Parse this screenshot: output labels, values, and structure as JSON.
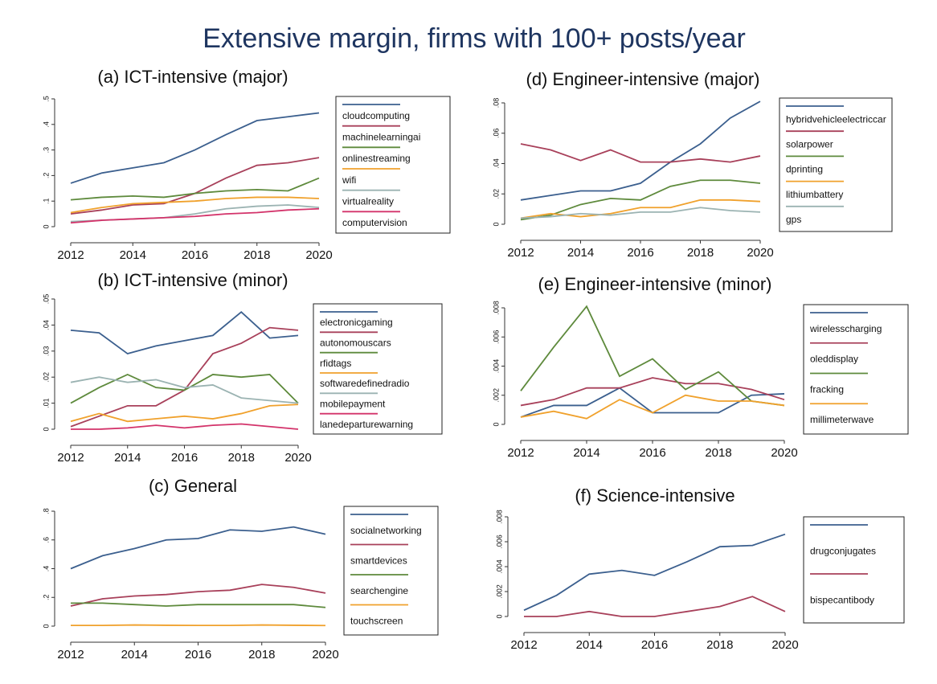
{
  "title": "Extensive margin, firms with 100+ posts/year",
  "chart_data": [
    {
      "type": "line",
      "title": "(a) ICT-intensive (major)",
      "x": [
        2012,
        2013,
        2014,
        2015,
        2016,
        2017,
        2018,
        2019,
        2020
      ],
      "xlim": [
        2012,
        2020
      ],
      "xticks": [
        2012,
        2014,
        2016,
        2018,
        2020
      ],
      "ylim": [
        0,
        0.5
      ],
      "yticks": [
        0,
        {
          "value": 0.1,
          "label": ".1"
        },
        {
          "value": 0.2,
          "label": ".2"
        },
        {
          "value": 0.3,
          "label": ".3"
        },
        {
          "value": 0.4,
          "label": ".4"
        },
        {
          "value": 0.5,
          "label": ".5"
        }
      ],
      "series": [
        {
          "name": "cloudcomputing",
          "color": "#3b5f8e",
          "values": [
            0.17,
            0.21,
            0.23,
            0.25,
            0.3,
            0.36,
            0.415,
            0.43,
            0.445
          ]
        },
        {
          "name": "machinelearningai",
          "color": "#a8405a",
          "values": [
            0.05,
            0.065,
            0.085,
            0.09,
            0.13,
            0.19,
            0.24,
            0.25,
            0.27
          ]
        },
        {
          "name": "onlinestreaming",
          "color": "#5e8a3c",
          "values": [
            0.105,
            0.115,
            0.12,
            0.115,
            0.13,
            0.14,
            0.145,
            0.14,
            0.19
          ]
        },
        {
          "name": "wifi",
          "color": "#f0a12c",
          "values": [
            0.055,
            0.075,
            0.09,
            0.095,
            0.1,
            0.11,
            0.115,
            0.115,
            0.11
          ]
        },
        {
          "name": "virtualreality",
          "color": "#9bb3b2",
          "values": [
            0.02,
            0.025,
            0.03,
            0.035,
            0.05,
            0.07,
            0.08,
            0.085,
            0.075
          ]
        },
        {
          "name": "computervision",
          "color": "#d3336a",
          "values": [
            0.015,
            0.025,
            0.03,
            0.035,
            0.04,
            0.05,
            0.055,
            0.065,
            0.07
          ]
        }
      ]
    },
    {
      "type": "line",
      "title": "(b) ICT-intensive (minor)",
      "x": [
        2012,
        2013,
        2014,
        2015,
        2016,
        2017,
        2018,
        2019,
        2020
      ],
      "xlim": [
        2012,
        2020
      ],
      "xticks": [
        2012,
        2014,
        2016,
        2018,
        2020
      ],
      "ylim": [
        0,
        0.05
      ],
      "yticks": [
        0,
        {
          "value": 0.01,
          "label": ".01"
        },
        {
          "value": 0.02,
          "label": ".02"
        },
        {
          "value": 0.03,
          "label": ".03"
        },
        {
          "value": 0.04,
          "label": ".04"
        },
        {
          "value": 0.05,
          "label": ".05"
        }
      ],
      "series": [
        {
          "name": "electronicgaming",
          "color": "#3b5f8e",
          "values": [
            0.038,
            0.037,
            0.029,
            0.032,
            0.034,
            0.036,
            0.045,
            0.035,
            0.036
          ]
        },
        {
          "name": "autonomouscars",
          "color": "#a8405a",
          "values": [
            0.001,
            0.005,
            0.009,
            0.009,
            0.015,
            0.029,
            0.033,
            0.039,
            0.038
          ]
        },
        {
          "name": "rfidtags",
          "color": "#5e8a3c",
          "values": [
            0.01,
            0.016,
            0.021,
            0.016,
            0.015,
            0.021,
            0.02,
            0.021,
            0.01
          ]
        },
        {
          "name": "softwaredefinedradio",
          "color": "#f0a12c",
          "values": [
            0.003,
            0.006,
            0.003,
            0.004,
            0.005,
            0.004,
            0.006,
            0.009,
            0.0095
          ]
        },
        {
          "name": "mobilepayment",
          "color": "#9bb3b2",
          "values": [
            0.018,
            0.02,
            0.018,
            0.019,
            0.016,
            0.017,
            0.012,
            0.011,
            0.01
          ]
        },
        {
          "name": "lanedeparturewarning",
          "color": "#d3336a",
          "values": [
            0,
            0,
            0.0005,
            0.0015,
            0.0005,
            0.0015,
            0.002,
            0.001,
            0
          ]
        }
      ]
    },
    {
      "type": "line",
      "title": "(c) General",
      "x": [
        2012,
        2013,
        2014,
        2015,
        2016,
        2017,
        2018,
        2019,
        2020
      ],
      "xlim": [
        2012,
        2020
      ],
      "xticks": [
        2012,
        2014,
        2016,
        2018,
        2020
      ],
      "ylim": [
        0,
        0.8
      ],
      "yticks": [
        0,
        {
          "value": 0.2,
          "label": ".2"
        },
        {
          "value": 0.4,
          "label": ".4"
        },
        {
          "value": 0.6,
          "label": ".6"
        },
        {
          "value": 0.8,
          "label": ".8"
        }
      ],
      "series": [
        {
          "name": "socialnetworking",
          "color": "#3b5f8e",
          "values": [
            0.4,
            0.49,
            0.54,
            0.6,
            0.61,
            0.67,
            0.66,
            0.69,
            0.64
          ]
        },
        {
          "name": "smartdevices",
          "color": "#a8405a",
          "values": [
            0.14,
            0.19,
            0.21,
            0.22,
            0.24,
            0.25,
            0.29,
            0.27,
            0.23
          ]
        },
        {
          "name": "searchengine",
          "color": "#5e8a3c",
          "values": [
            0.16,
            0.16,
            0.15,
            0.14,
            0.15,
            0.15,
            0.15,
            0.15,
            0.13
          ]
        },
        {
          "name": "touchscreen",
          "color": "#f0a12c",
          "values": [
            0.005,
            0.005,
            0.008,
            0.006,
            0.005,
            0.005,
            0.008,
            0.006,
            0.004
          ]
        }
      ]
    },
    {
      "type": "line",
      "title": "(d) Engineer-intensive (major)",
      "x": [
        2012,
        2013,
        2014,
        2015,
        2016,
        2017,
        2018,
        2019,
        2020
      ],
      "xlim": [
        2012,
        2020
      ],
      "xticks": [
        2012,
        2014,
        2016,
        2018,
        2020
      ],
      "ylim": [
        0,
        0.08
      ],
      "yticks": [
        0,
        {
          "value": 0.02,
          "label": ".02"
        },
        {
          "value": 0.04,
          "label": ".04"
        },
        {
          "value": 0.06,
          "label": ".06"
        },
        {
          "value": 0.08,
          "label": ".08"
        }
      ],
      "series": [
        {
          "name": "hybridvehicleelectriccar",
          "color": "#3b5f8e",
          "values": [
            0.016,
            0.019,
            0.022,
            0.022,
            0.027,
            0.041,
            0.053,
            0.07,
            0.081
          ]
        },
        {
          "name": "solarpower",
          "color": "#a8405a",
          "values": [
            0.053,
            0.049,
            0.042,
            0.049,
            0.041,
            0.041,
            0.043,
            0.041,
            0.045
          ]
        },
        {
          "name": "dprinting",
          "color": "#5e8a3c",
          "values": [
            0.003,
            0.006,
            0.013,
            0.017,
            0.016,
            0.025,
            0.029,
            0.029,
            0.027
          ]
        },
        {
          "name": "lithiumbattery",
          "color": "#f0a12c",
          "values": [
            0.004,
            0.007,
            0.005,
            0.007,
            0.011,
            0.011,
            0.016,
            0.016,
            0.015
          ]
        },
        {
          "name": "gps",
          "color": "#9bb3b2",
          "values": [
            0.004,
            0.005,
            0.007,
            0.006,
            0.008,
            0.008,
            0.011,
            0.009,
            0.008
          ]
        }
      ]
    },
    {
      "type": "line",
      "title": "(e) Engineer-intensive (minor)",
      "x": [
        2012,
        2013,
        2014,
        2015,
        2016,
        2017,
        2018,
        2019,
        2020
      ],
      "xlim": [
        2012,
        2020
      ],
      "xticks": [
        2012,
        2014,
        2016,
        2018,
        2020
      ],
      "ylim": [
        0,
        0.008
      ],
      "yticks": [
        0,
        {
          "value": 0.002,
          "label": ".002"
        },
        {
          "value": 0.004,
          "label": ".004"
        },
        {
          "value": 0.006,
          "label": ".006"
        },
        {
          "value": 0.008,
          "label": ".008"
        }
      ],
      "series": [
        {
          "name": "wirelesscharging",
          "color": "#3b5f8e",
          "values": [
            0.0005,
            0.0013,
            0.0013,
            0.0025,
            0.0008,
            0.0008,
            0.0008,
            0.002,
            0.0021
          ]
        },
        {
          "name": "oleddisplay",
          "color": "#a8405a",
          "values": [
            0.0013,
            0.0017,
            0.0025,
            0.0025,
            0.0032,
            0.0028,
            0.0028,
            0.0024,
            0.0017
          ]
        },
        {
          "name": "fracking",
          "color": "#5e8a3c",
          "values": [
            0.0023,
            0.0053,
            0.0081,
            0.0033,
            0.0045,
            0.0024,
            0.0036,
            0.0016,
            0.0013
          ]
        },
        {
          "name": "millimeterwave",
          "color": "#f0a12c",
          "values": [
            0.0005,
            0.0009,
            0.0004,
            0.0017,
            0.0008,
            0.002,
            0.0016,
            0.0016,
            0.0013
          ]
        }
      ]
    },
    {
      "type": "line",
      "title": "(f) Science-intensive",
      "x": [
        2012,
        2013,
        2014,
        2015,
        2016,
        2017,
        2018,
        2019,
        2020
      ],
      "xlim": [
        2012,
        2020
      ],
      "xticks": [
        2012,
        2014,
        2016,
        2018,
        2020
      ],
      "ylim": [
        0,
        0.008
      ],
      "yticks": [
        0,
        {
          "value": 0.002,
          "label": ".002"
        },
        {
          "value": 0.004,
          "label": ".004"
        },
        {
          "value": 0.006,
          "label": ".006"
        },
        {
          "value": 0.008,
          "label": ".008"
        }
      ],
      "series": [
        {
          "name": "drugconjugates",
          "color": "#3b5f8e",
          "values": [
            0.0005,
            0.0017,
            0.0034,
            0.0037,
            0.0033,
            0.0044,
            0.0056,
            0.0057,
            0.0066
          ]
        },
        {
          "name": "bispecantibody",
          "color": "#a8405a",
          "values": [
            0,
            0,
            0.0004,
            0,
            0,
            0.0004,
            0.0008,
            0.0016,
            0.0004
          ]
        }
      ]
    }
  ]
}
